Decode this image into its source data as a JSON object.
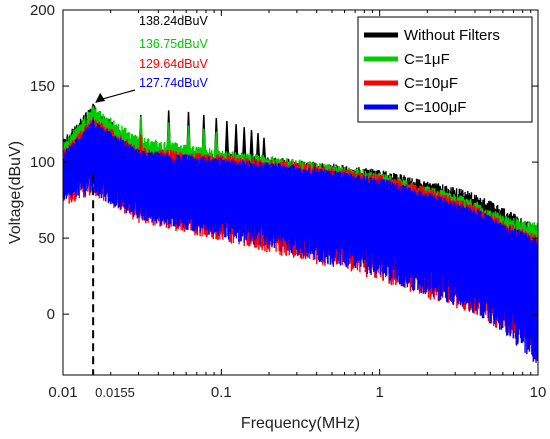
{
  "chart_data": {
    "type": "line",
    "xlabel": "Frequency(MHz)",
    "ylabel": "Voltage(dBuV)",
    "x_scale": "log",
    "xlim": [
      0.01,
      10
    ],
    "ylim": [
      -40,
      200
    ],
    "x_ticks": [
      {
        "value": 0.01,
        "label": "0.01"
      },
      {
        "value": 0.0155,
        "label": "0.0155"
      },
      {
        "value": 0.1,
        "label": "0.1"
      },
      {
        "value": 1,
        "label": "1"
      },
      {
        "value": 10,
        "label": "10"
      }
    ],
    "y_ticks": [
      0,
      50,
      100,
      150,
      200
    ],
    "grid": false,
    "legend_position": "top-right",
    "series": [
      {
        "name": "Without Filters",
        "color": "#000000",
        "envelope_x": [
          0.01,
          0.0155,
          0.03,
          0.1,
          0.3,
          1,
          2,
          4,
          6,
          10
        ],
        "upper": [
          115,
          138.24,
          110,
          106,
          102,
          95,
          88,
          80,
          70,
          58
        ],
        "lower": [
          88,
          92,
          82,
          70,
          58,
          45,
          32,
          22,
          12,
          -20
        ],
        "peaks_x": [
          0.0155,
          0.031,
          0.0465,
          0.062,
          0.0775,
          0.093,
          0.1085,
          0.124,
          0.1395,
          0.155,
          0.1705,
          0.186
        ],
        "peaks_y": [
          138.24,
          131,
          134,
          133,
          131,
          129,
          127,
          125,
          123,
          121,
          119,
          116
        ]
      },
      {
        "name": "C=1μF",
        "color": "#00cc00",
        "envelope_x": [
          0.01,
          0.0155,
          0.03,
          0.1,
          0.3,
          1,
          2,
          4,
          6,
          10
        ],
        "upper": [
          113,
          136.75,
          117,
          108,
          102,
          93,
          85,
          75,
          65,
          60
        ],
        "lower": [
          88,
          90,
          80,
          68,
          56,
          42,
          30,
          18,
          6,
          -22
        ],
        "peaks_x": [
          0.0155,
          0.031,
          0.0465,
          0.062,
          0.0775,
          0.093
        ],
        "peaks_y": [
          136.75,
          130,
          126,
          124,
          122,
          120
        ]
      },
      {
        "name": "C=10μF",
        "color": "#ff0000",
        "envelope_x": [
          0.01,
          0.0155,
          0.03,
          0.1,
          0.3,
          1,
          2,
          4,
          6,
          10
        ],
        "upper": [
          108,
          129.64,
          110,
          105,
          100,
          92,
          83,
          72,
          62,
          52
        ],
        "lower": [
          70,
          78,
          60,
          48,
          36,
          22,
          10,
          0,
          -12,
          -32
        ],
        "peaks_x": [
          0.0155,
          0.031
        ],
        "peaks_y": [
          129.64,
          118
        ]
      },
      {
        "name": "C=100μF",
        "color": "#0000ff",
        "envelope_x": [
          0.01,
          0.0155,
          0.03,
          0.1,
          0.3,
          1,
          2,
          4,
          6,
          10
        ],
        "upper": [
          106,
          127.74,
          108,
          103,
          98,
          90,
          80,
          70,
          60,
          50
        ],
        "lower": [
          75,
          78,
          62,
          50,
          38,
          24,
          12,
          0,
          -12,
          -35
        ],
        "peaks_x": [
          0.0155
        ],
        "peaks_y": [
          127.74
        ]
      }
    ],
    "annotations": [
      {
        "text": "138.24dBuV",
        "color": "#000000"
      },
      {
        "text": "136.75dBuV",
        "color": "#00cc00"
      },
      {
        "text": "129.64dBuV",
        "color": "#ff0000"
      },
      {
        "text": "127.74dBuV",
        "color": "#0000ff"
      }
    ],
    "marker_line": {
      "x": 0.0155,
      "style": "dashed"
    }
  }
}
